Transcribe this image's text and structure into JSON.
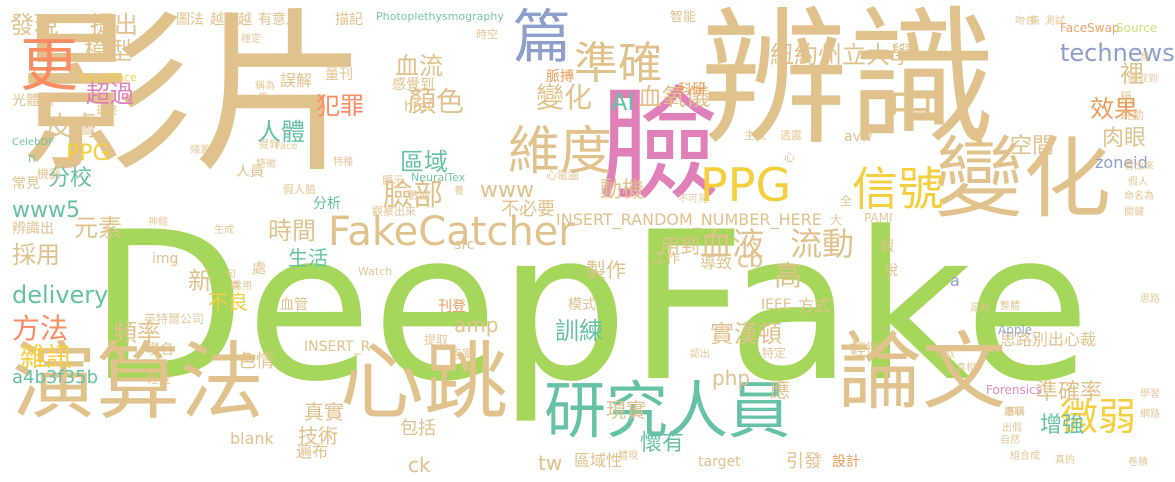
{
  "palette": {
    "tan": "#e1c28c",
    "green": "#a6d65a",
    "pink": "#e07fb8",
    "yellow": "#f5cf3d",
    "orange": "#f09b58",
    "teal": "#66c2a5",
    "blue": "#8da0cb",
    "lime": "#c9e06a",
    "grey": "#b3b3b3",
    "peach": "#fc8d62"
  },
  "words": [
    "影片",
    "辨識",
    "DeepFake",
    "臉",
    "變化",
    "演算法",
    "心跳",
    "論文",
    "研究",
    "人員",
    "FakeCatcher",
    "PPG",
    "信號",
    "維度",
    "準確",
    "更",
    "篇",
    "中",
    "微弱",
    "紐約州立大學",
    "technews",
    "發現",
    "提出",
    "模型",
    "顏色",
    "變化",
    "血流",
    "AI",
    "血氧儀",
    "效果",
    "裡",
    "zoneid",
    "超過",
    "犯罪",
    "人體",
    "皮膚",
    "PPG",
    "肉眼",
    "空間",
    "區域",
    "分校",
    "www5",
    "臉部",
    "www",
    "動機",
    "不必要",
    "元素",
    "時間",
    "血液",
    "流動",
    "採用",
    "delivery",
    "方法",
    "雜訊",
    "頻率",
    "生活",
    "新",
    "不良",
    "高",
    "cb",
    "amp",
    "訓練",
    "實漢頓",
    "準確率",
    "增強",
    "懷有",
    "現實",
    "php",
    "應",
    "真實",
    "技術",
    "包括",
    "ck",
    "tw",
    "區域性",
    "a4b3f35b",
    "色情",
    "blank",
    "遍布",
    "target",
    "引發",
    "設計",
    "INSERT_RANDOM_NUMBER_HERE",
    "INSERT_R",
    "img",
    "src",
    "製作",
    "用到",
    "工作",
    "導致",
    "IEEE",
    "方式",
    "思路別出心裁",
    "輕微",
    "特定",
    "模式",
    "刊登",
    "提取",
    "答案",
    "血管",
    "英特爾公司",
    "學名",
    "睡覺",
    "機器",
    "常見",
    "辨識出",
    "光體積",
    "最終",
    "CelebDF",
    "n",
    "href",
    "誤解",
    "量刊",
    "感覺到",
    "Photoplethysmography",
    "時空",
    "圖法",
    "越來越",
    "有意思",
    "描記",
    "智能",
    "科研",
    "脈搏",
    "全",
    "大",
    "avw",
    "主流",
    "透露",
    "心",
    "心電圖",
    "NeuralTex",
    "顯示",
    "假人臉",
    "分析",
    "數據",
    "觀察出來",
    "Watch",
    "PAMI",
    "a",
    "Face",
    "Face2Face",
    "FaceSwap",
    "Source",
    "Forensics",
    "Apple",
    "測試",
    "讀取到",
    "稱",
    "跳動",
    "身",
    "看出來",
    "假人",
    "命名為",
    "關鍵",
    "足夠",
    "整體",
    "思路",
    "網路",
    "學習",
    "卷積",
    "真的",
    "自然",
    "組合成",
    "慈稱",
    "出假",
    "讀取",
    "認出",
    "兩",
    "處",
    "說",
    "假",
    "人員",
    "稱為",
    "原",
    "提到",
    "殘差",
    "特種",
    "神經",
    "生成",
    "句",
    "常用",
    "吻合",
    "集",
    "穩定",
    "不可見",
    "養",
    "體現",
    "讀取",
    "真相",
    "特徵"
  ]
}
